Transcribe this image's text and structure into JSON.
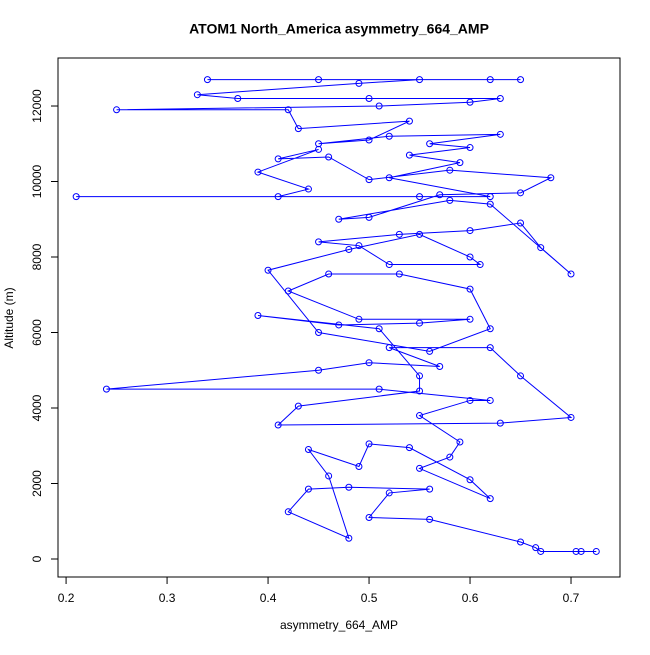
{
  "chart_data": {
    "type": "line",
    "title": "ATOM1 North_America asymmetry_664_AMP",
    "xlabel": "asymmetry_664_AMP",
    "ylabel": "Altitude (m)",
    "color": "#0000ff",
    "marker": "open-circle",
    "xlim": [
      0.192,
      0.7485
    ],
    "ylim": [
      -477,
      13272
    ],
    "xticks": [
      0.2,
      0.3,
      0.4,
      0.5,
      0.6,
      0.7
    ],
    "yticks": [
      0,
      2000,
      4000,
      6000,
      8000,
      10000,
      12000
    ],
    "x": [
      0.725,
      0.71,
      0.705,
      0.67,
      0.665,
      0.65,
      0.56,
      0.5,
      0.52,
      0.56,
      0.48,
      0.44,
      0.42,
      0.48,
      0.46,
      0.44,
      0.49,
      0.5,
      0.54,
      0.6,
      0.62,
      0.55,
      0.58,
      0.59,
      0.55,
      0.6,
      0.62,
      0.51,
      0.24,
      0.45,
      0.5,
      0.57,
      0.52,
      0.62,
      0.65,
      0.7,
      0.63,
      0.41,
      0.43,
      0.55,
      0.55,
      0.51,
      0.39,
      0.47,
      0.55,
      0.6,
      0.49,
      0.42,
      0.46,
      0.53,
      0.6,
      0.62,
      0.56,
      0.45,
      0.4,
      0.48,
      0.55,
      0.6,
      0.61,
      0.52,
      0.49,
      0.45,
      0.53,
      0.6,
      0.65,
      0.67,
      0.7,
      0.62,
      0.58,
      0.47,
      0.5,
      0.57,
      0.65,
      0.68,
      0.58,
      0.5,
      0.46,
      0.41,
      0.45,
      0.39,
      0.44,
      0.41,
      0.21,
      0.55,
      0.62,
      0.52,
      0.59,
      0.54,
      0.6,
      0.56,
      0.63,
      0.52,
      0.45,
      0.5,
      0.54,
      0.43,
      0.42,
      0.25,
      0.51,
      0.6,
      0.63,
      0.5,
      0.37,
      0.33,
      0.49,
      0.55,
      0.65,
      0.62,
      0.45,
      0.34
    ],
    "values": [
      200,
      200,
      200,
      200,
      300,
      450,
      1050,
      1100,
      1750,
      1850,
      1900,
      1850,
      1250,
      550,
      2200,
      2900,
      2450,
      3050,
      2950,
      2100,
      1600,
      2400,
      2700,
      3100,
      3800,
      4200,
      4200,
      4500,
      4500,
      5000,
      5200,
      5100,
      5600,
      5600,
      4850,
      3750,
      3600,
      3550,
      4050,
      4450,
      4850,
      6100,
      6450,
      6200,
      6250,
      6350,
      6350,
      7100,
      7550,
      7550,
      7150,
      6100,
      5500,
      6000,
      7650,
      8200,
      8600,
      8000,
      7800,
      7800,
      8300,
      8400,
      8600,
      8700,
      8900,
      8250,
      7550,
      9400,
      9500,
      9000,
      9050,
      9650,
      9700,
      10100,
      10300,
      10050,
      10650,
      10600,
      10850,
      10250,
      9800,
      9600,
      9600,
      9600,
      9600,
      10100,
      10500,
      10700,
      10900,
      11000,
      11250,
      11200,
      11000,
      11100,
      11600,
      11400,
      11900,
      11900,
      12000,
      12100,
      12200,
      12200,
      12200,
      12300,
      12600,
      12700,
      12700,
      12700,
      12700,
      12700
    ]
  }
}
